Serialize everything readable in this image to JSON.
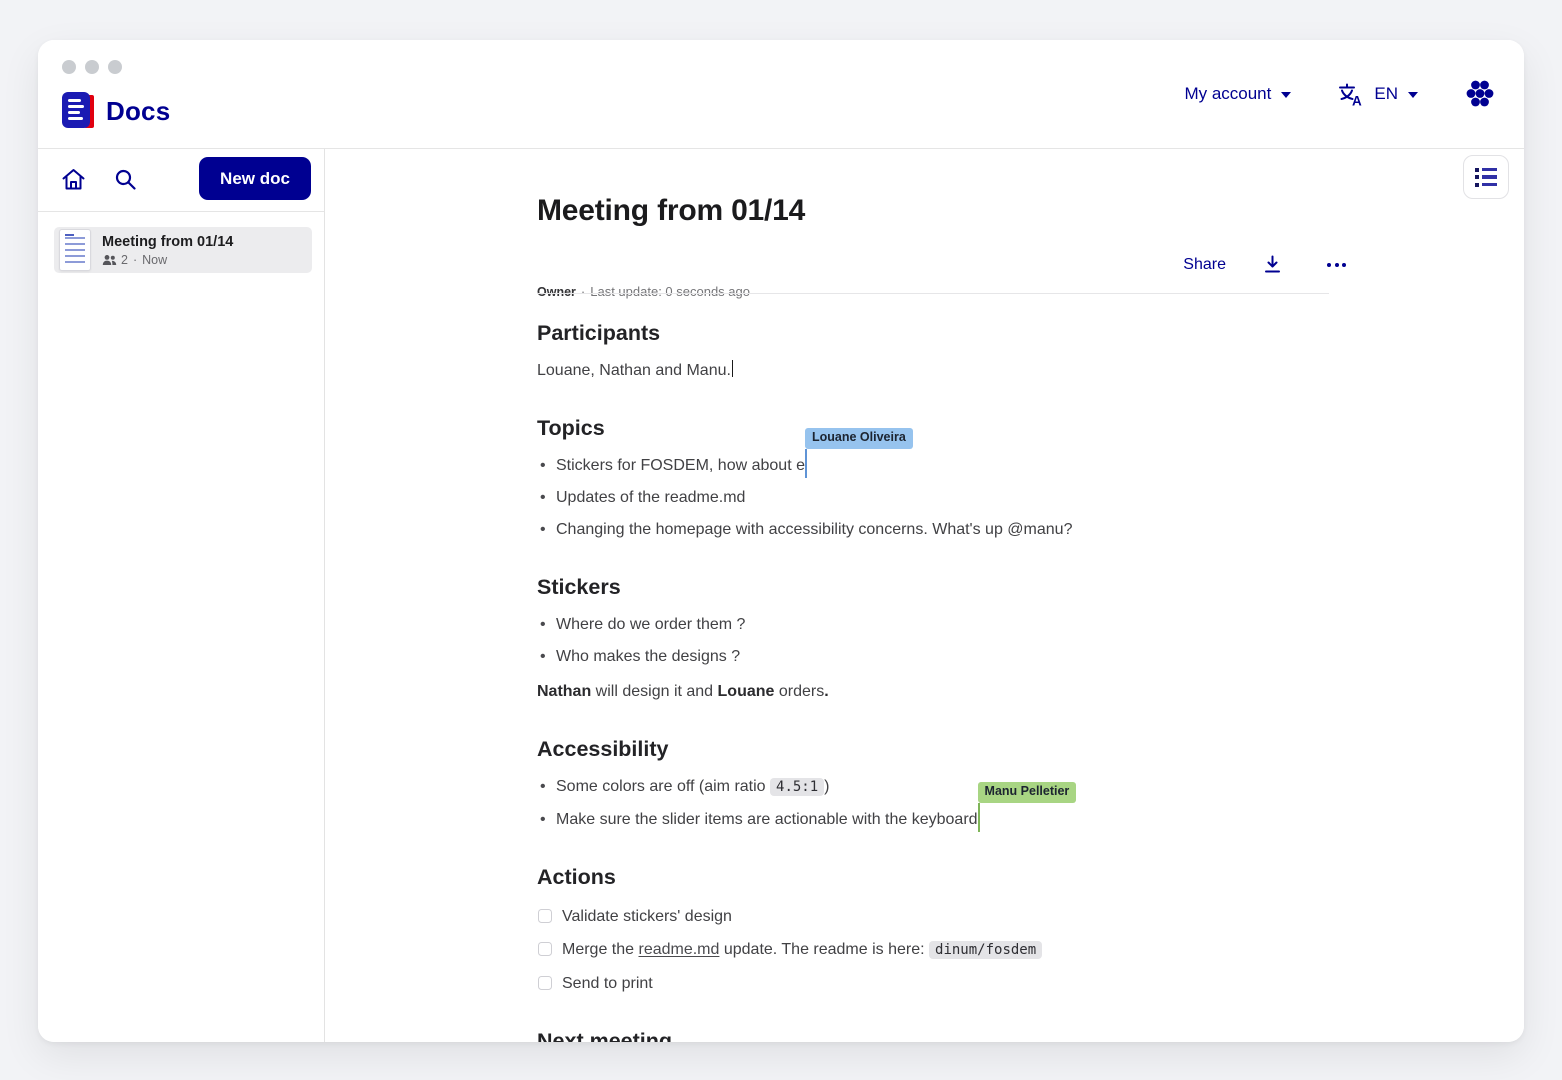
{
  "colors": {
    "brand": "#000091",
    "logo_red": "#e1000f",
    "cursor_blue_bg": "#96c3ee",
    "cursor_blue_caret": "#5f94d6",
    "cursor_green_bg": "#a8d583",
    "cursor_green_caret": "#7fb558"
  },
  "header": {
    "app_name": "Docs",
    "account_label": "My account",
    "language": "EN"
  },
  "sidebar": {
    "new_doc_label": "New doc",
    "document": {
      "title": "Meeting from 01/14",
      "members_count": "2",
      "separator": "·",
      "updated": "Now"
    }
  },
  "doc": {
    "title": "Meeting from 01/14",
    "meta": {
      "role": "Owner",
      "separator": "·",
      "updated": "Last update: 0 seconds ago"
    },
    "actions": {
      "share_label": "Share"
    },
    "blocks": [
      {
        "type": "h2",
        "text": "Participants"
      },
      {
        "type": "p",
        "segments": [
          {
            "t": "text",
            "v": "Louane, Nathan and Manu."
          },
          {
            "t": "caret"
          }
        ]
      },
      {
        "type": "h2",
        "text": "Topics"
      },
      {
        "type": "bullets",
        "items": [
          [
            {
              "t": "text",
              "v": "Stickers for FOSDEM, how about e"
            },
            {
              "t": "cursor",
              "user": 0
            }
          ],
          [
            {
              "t": "text",
              "v": "Updates of the readme.md"
            }
          ],
          [
            {
              "t": "text",
              "v": "Changing the homepage with accessibility concerns. What's up @manu?"
            }
          ]
        ]
      },
      {
        "type": "h2",
        "text": "Stickers"
      },
      {
        "type": "bullets",
        "items": [
          [
            {
              "t": "text",
              "v": "Where do we order them ?"
            }
          ],
          [
            {
              "t": "text",
              "v": "Who makes the designs ?"
            }
          ]
        ]
      },
      {
        "type": "p",
        "segments": [
          {
            "t": "bold",
            "v": "Nathan"
          },
          {
            "t": "text",
            "v": " will design it and "
          },
          {
            "t": "bold",
            "v": "Louane"
          },
          {
            "t": "text",
            "v": " orders"
          },
          {
            "t": "bold",
            "v": "."
          }
        ]
      },
      {
        "type": "h2",
        "text": "Accessibility"
      },
      {
        "type": "bullets",
        "items": [
          [
            {
              "t": "text",
              "v": "Some colors are off (aim ratio "
            },
            {
              "t": "code",
              "v": "4.5:1"
            },
            {
              "t": "text",
              "v": ")"
            }
          ],
          [
            {
              "t": "text",
              "v": "Make sure the slider items are actionable with the keyboard"
            },
            {
              "t": "cursor",
              "user": 1
            }
          ]
        ]
      },
      {
        "type": "h2",
        "text": "Actions"
      },
      {
        "type": "todos",
        "items": [
          {
            "checked": false,
            "segments": [
              {
                "t": "text",
                "v": "Validate stickers' design"
              }
            ]
          },
          {
            "checked": false,
            "segments": [
              {
                "t": "text",
                "v": "Merge the "
              },
              {
                "t": "link",
                "v": "readme.md"
              },
              {
                "t": "text",
                "v": " update. The readme is here: "
              },
              {
                "t": "code",
                "v": "dinum/fosdem"
              }
            ]
          },
          {
            "checked": false,
            "segments": [
              {
                "t": "text",
                "v": "Send to print"
              }
            ]
          }
        ]
      },
      {
        "type": "h2",
        "text": "Next meeting"
      }
    ]
  },
  "cursors": [
    {
      "name": "Louane Oliveira",
      "bg": "#96c3ee",
      "caret": "#5f94d6"
    },
    {
      "name": "Manu Pelletier",
      "bg": "#a8d583",
      "caret": "#7fb558"
    }
  ]
}
